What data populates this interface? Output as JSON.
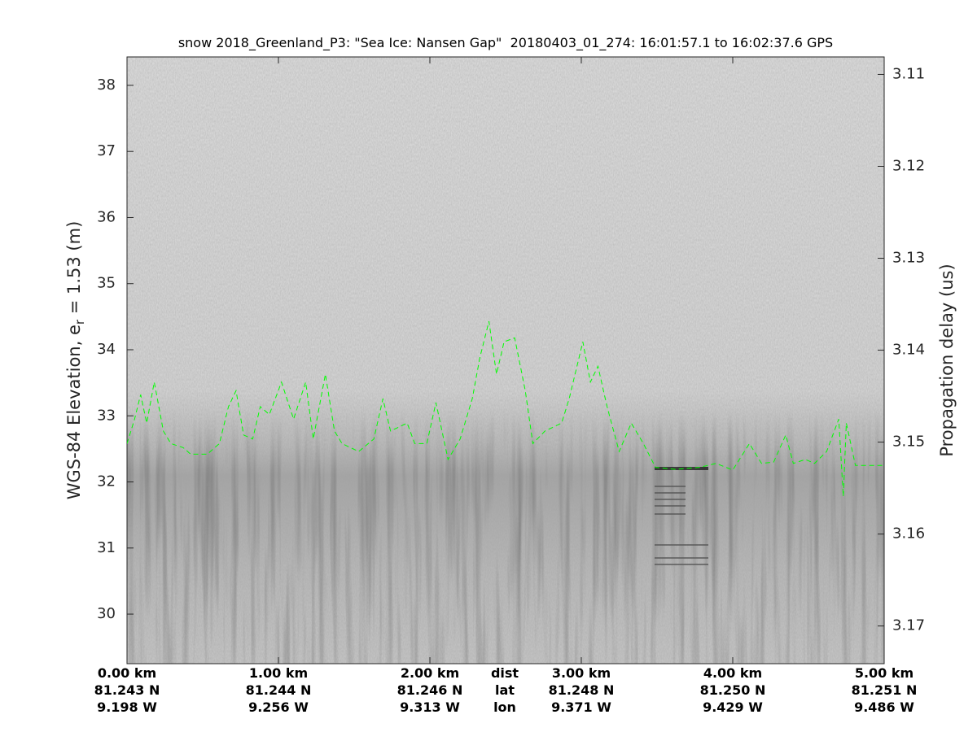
{
  "chart_data": {
    "type": "line",
    "title": "snow 2018_Greenland_P3: \"Sea Ice: Nansen Gap\"  20180403_01_274: 16:01:57.1 to 16:02:37.6 GPS",
    "ylabel": [
      "WGS-84 Elevation, e",
      "r",
      " = 1.53 (m)"
    ],
    "y2label": "Propagation delay (us)",
    "x_row_names": [
      "dist",
      "lat",
      "lon"
    ],
    "xlim": [
      0,
      5
    ],
    "xticks": [
      {
        "value": 0,
        "label": "0.00 km"
      },
      {
        "value": 1,
        "label": "1.00 km"
      },
      {
        "value": 2,
        "label": "2.00 km"
      },
      {
        "value": 3,
        "label": "3.00 km"
      },
      {
        "value": 4,
        "label": "4.00 km"
      },
      {
        "value": 5,
        "label": "5.00 km"
      }
    ],
    "xtick_lat": [
      "81.243 N",
      "81.244 N",
      "81.246 N",
      "81.248 N",
      "81.250 N",
      "81.251 N"
    ],
    "xtick_lon": [
      "9.198 W",
      "9.256 W",
      "9.313 W",
      "9.371 W",
      "9.429 W",
      "9.486 W"
    ],
    "ylim": [
      29.25,
      38.43
    ],
    "yticks": [
      30,
      31,
      32,
      33,
      34,
      35,
      36,
      37,
      38
    ],
    "y2lim": [
      3.1741,
      3.1081
    ],
    "y2ticks": [
      3.11,
      3.12,
      3.13,
      3.14,
      3.15,
      3.16,
      3.17
    ],
    "x": [
      0.0,
      0.05,
      0.09,
      0.13,
      0.18,
      0.24,
      0.29,
      0.37,
      0.42,
      0.53,
      0.61,
      0.67,
      0.72,
      0.77,
      0.83,
      0.88,
      0.94,
      1.02,
      1.1,
      1.18,
      1.23,
      1.31,
      1.37,
      1.42,
      1.53,
      1.63,
      1.69,
      1.74,
      1.85,
      1.9,
      1.98,
      2.04,
      2.12,
      2.2,
      2.28,
      2.33,
      2.39,
      2.44,
      2.49,
      2.56,
      2.63,
      2.68,
      2.76,
      2.87,
      2.92,
      3.01,
      3.06,
      3.11,
      3.17,
      3.25,
      3.33,
      3.41,
      3.49,
      3.62,
      3.78,
      3.89,
      4.0,
      4.11,
      4.19,
      4.27,
      4.35,
      4.4,
      4.48,
      4.54,
      4.62,
      4.7,
      4.73,
      4.75,
      4.81,
      5.0
    ],
    "series": [
      {
        "color": "#00ff00",
        "dashed": true,
        "values": [
          32.58,
          32.95,
          33.32,
          32.89,
          33.51,
          32.77,
          32.58,
          32.52,
          32.42,
          32.42,
          32.58,
          33.14,
          33.38,
          32.71,
          32.65,
          33.14,
          33.02,
          33.51,
          32.95,
          33.51,
          32.65,
          33.63,
          32.77,
          32.58,
          32.46,
          32.65,
          33.26,
          32.77,
          32.89,
          32.58,
          32.58,
          33.2,
          32.34,
          32.65,
          33.26,
          33.88,
          34.43,
          33.63,
          34.12,
          34.18,
          33.38,
          32.58,
          32.77,
          32.89,
          33.26,
          34.12,
          33.51,
          33.75,
          33.14,
          32.46,
          32.89,
          32.58,
          32.22,
          32.19,
          32.22,
          32.28,
          32.18,
          32.58,
          32.28,
          32.3,
          32.71,
          32.28,
          32.34,
          32.28,
          32.46,
          32.95,
          31.78,
          32.89,
          32.25,
          32.25
        ]
      }
    ]
  }
}
